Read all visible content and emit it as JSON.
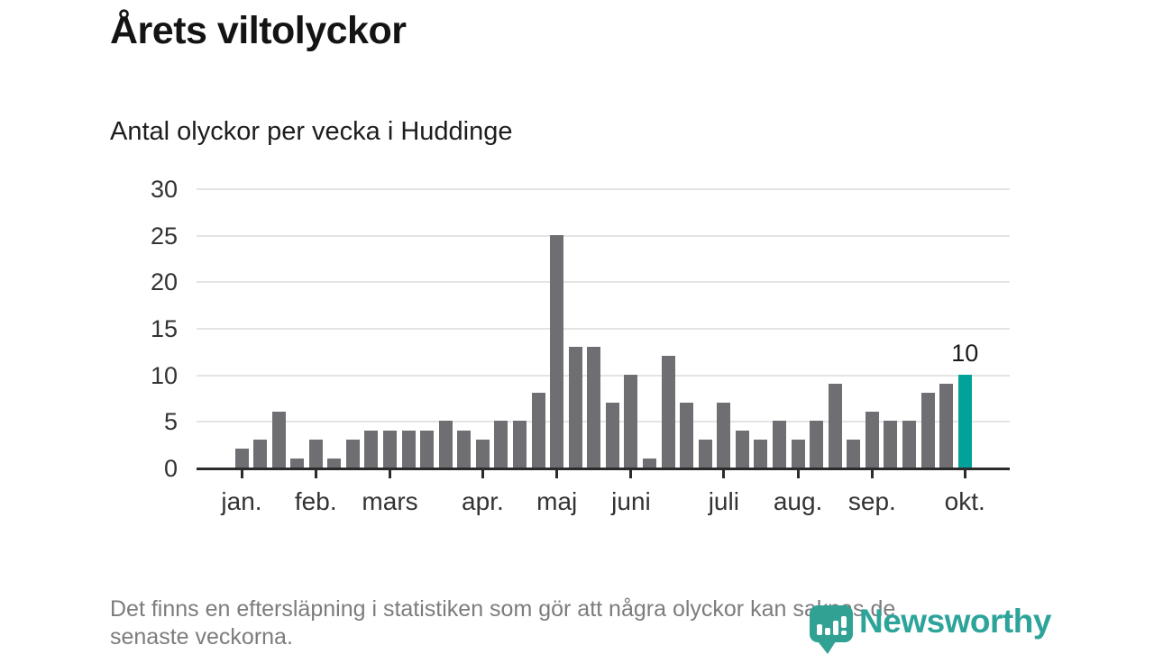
{
  "header": {
    "title": "Årets viltolyckor",
    "subtitle": "Antal olyckor per vecka i Huddinge"
  },
  "chart_data": {
    "type": "bar",
    "title": "Årets viltolyckor",
    "subtitle": "Antal olyckor per vecka i Huddinge",
    "x_unit": "week",
    "values": [
      2,
      3,
      6,
      1,
      3,
      1,
      3,
      4,
      4,
      4,
      4,
      5,
      4,
      3,
      5,
      5,
      8,
      25,
      13,
      13,
      7,
      10,
      1,
      12,
      7,
      3,
      7,
      4,
      3,
      5,
      3,
      5,
      9,
      3,
      6,
      5,
      5,
      8,
      9,
      10
    ],
    "bar_color": "#6f6f73",
    "highlight": {
      "index": 39,
      "value": 10,
      "label": "10",
      "color": "#00a299"
    },
    "ylim": [
      0,
      30
    ],
    "yticks": [
      0,
      5,
      10,
      15,
      20,
      25,
      30
    ],
    "grid": "horizontal",
    "month_ticks": [
      {
        "week_index": 0,
        "label": "jan."
      },
      {
        "week_index": 4,
        "label": "feb."
      },
      {
        "week_index": 8,
        "label": "mars"
      },
      {
        "week_index": 13,
        "label": "apr."
      },
      {
        "week_index": 17,
        "label": "maj"
      },
      {
        "week_index": 21,
        "label": "juni"
      },
      {
        "week_index": 26,
        "label": "juli"
      },
      {
        "week_index": 30,
        "label": "aug."
      },
      {
        "week_index": 34,
        "label": "sep."
      },
      {
        "week_index": 39,
        "label": "okt."
      }
    ]
  },
  "footer": {
    "lines": [
      "Det finns en eftersläpning i statistiken som gör att några olyckor kan saknas de",
      "senaste veckorna."
    ]
  },
  "logo": {
    "wordmark": "Newsworthy",
    "color": "#2da49a"
  }
}
